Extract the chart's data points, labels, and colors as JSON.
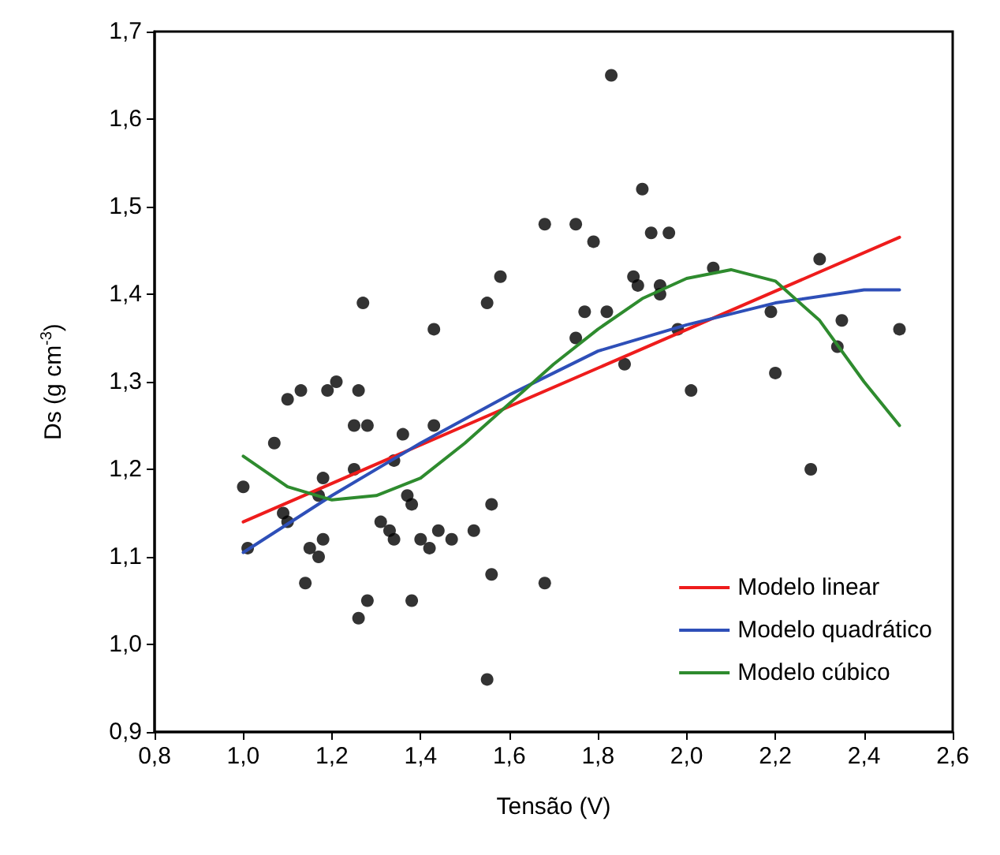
{
  "chart_data": {
    "type": "scatter",
    "xlabel": "Tensão (V)",
    "ylabel": "Ds (g cm$^{-3}$)",
    "xlim": [
      0.8,
      2.6
    ],
    "ylim": [
      0.9,
      1.7
    ],
    "xticks": [
      {
        "value": 0.8,
        "label": "0,8"
      },
      {
        "value": 1.0,
        "label": "1,0"
      },
      {
        "value": 1.2,
        "label": "1,2"
      },
      {
        "value": 1.4,
        "label": "1,4"
      },
      {
        "value": 1.6,
        "label": "1,6"
      },
      {
        "value": 1.8,
        "label": "1,8"
      },
      {
        "value": 2.0,
        "label": "2,0"
      },
      {
        "value": 2.2,
        "label": "2,2"
      },
      {
        "value": 2.4,
        "label": "2,4"
      },
      {
        "value": 2.6,
        "label": "2,6"
      }
    ],
    "yticks": [
      {
        "value": 0.9,
        "label": "0,9"
      },
      {
        "value": 1.0,
        "label": "1,0"
      },
      {
        "value": 1.1,
        "label": "1,1"
      },
      {
        "value": 1.2,
        "label": "1,2"
      },
      {
        "value": 1.3,
        "label": "1,3"
      },
      {
        "value": 1.4,
        "label": "1,4"
      },
      {
        "value": 1.5,
        "label": "1,5"
      },
      {
        "value": 1.6,
        "label": "1,6"
      },
      {
        "value": 1.7,
        "label": "1,7"
      }
    ],
    "grid": false,
    "legend": "bottom right",
    "marker": "circle",
    "series": [
      {
        "color": "#000000",
        "x": [
          1.0,
          1.01,
          1.07,
          1.09,
          1.1,
          1.1,
          1.13,
          1.14,
          1.15,
          1.17,
          1.17,
          1.18,
          1.18,
          1.19,
          1.21,
          1.25,
          1.25,
          1.26,
          1.26,
          1.27,
          1.28,
          1.28,
          1.31,
          1.33,
          1.34,
          1.34,
          1.36,
          1.37,
          1.38,
          1.38,
          1.4,
          1.42,
          1.43,
          1.43,
          1.44,
          1.47,
          1.52,
          1.55,
          1.56,
          1.56,
          1.55,
          1.58,
          1.68,
          1.68,
          1.75,
          1.75,
          1.77,
          1.79,
          1.82,
          1.83,
          1.86,
          1.88,
          1.89,
          1.9,
          1.92,
          1.94,
          1.94,
          1.96,
          1.98,
          2.01,
          2.06,
          2.19,
          2.2,
          2.28,
          2.3,
          2.34,
          2.35,
          2.48
        ],
        "values": [
          1.18,
          1.11,
          1.23,
          1.15,
          1.14,
          1.28,
          1.29,
          1.07,
          1.11,
          1.17,
          1.1,
          1.19,
          1.12,
          1.29,
          1.3,
          1.2,
          1.25,
          1.29,
          1.03,
          1.39,
          1.05,
          1.25,
          1.14,
          1.13,
          1.12,
          1.21,
          1.24,
          1.17,
          1.05,
          1.16,
          1.12,
          1.11,
          1.36,
          1.25,
          1.13,
          1.12,
          1.13,
          1.39,
          1.16,
          1.08,
          0.96,
          1.42,
          1.48,
          1.07,
          1.35,
          1.48,
          1.38,
          1.46,
          1.38,
          1.65,
          1.32,
          1.42,
          1.41,
          1.52,
          1.47,
          1.4,
          1.41,
          1.47,
          1.36,
          1.29,
          1.43,
          1.38,
          1.31,
          1.2,
          1.44,
          1.34,
          1.37,
          1.36
        ]
      },
      {
        "type": "line",
        "name": "Modelo linear",
        "color": "#ee1c1c",
        "marker": "none",
        "x": [
          1.0,
          2.48
        ],
        "values": [
          1.14,
          1.465
        ]
      },
      {
        "type": "line",
        "name": "Modelo quadrático",
        "color": "#2e4fb8",
        "marker": "none",
        "x": [
          1.0,
          1.2,
          1.4,
          1.6,
          1.8,
          2.0,
          2.2,
          2.4,
          2.48
        ],
        "values": [
          1.105,
          1.17,
          1.23,
          1.285,
          1.335,
          1.365,
          1.39,
          1.405,
          1.405
        ]
      },
      {
        "type": "line",
        "name": "Modelo cúbico",
        "color": "#2e8b2e",
        "marker": "none",
        "x": [
          1.0,
          1.1,
          1.2,
          1.3,
          1.4,
          1.5,
          1.6,
          1.7,
          1.8,
          1.9,
          2.0,
          2.1,
          2.2,
          2.3,
          2.4,
          2.48
        ],
        "values": [
          1.215,
          1.18,
          1.165,
          1.17,
          1.19,
          1.23,
          1.275,
          1.32,
          1.36,
          1.395,
          1.418,
          1.428,
          1.415,
          1.37,
          1.3,
          1.25
        ]
      }
    ]
  }
}
